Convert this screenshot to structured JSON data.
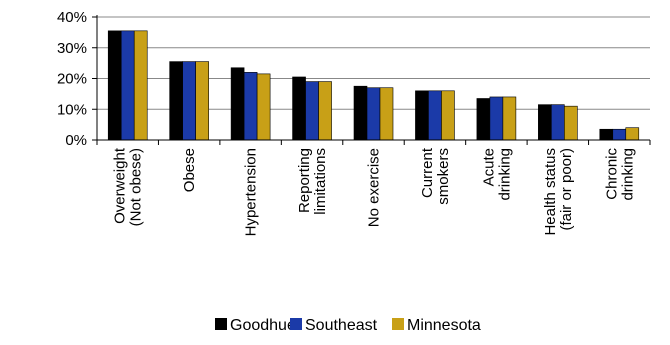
{
  "chart_data": {
    "type": "bar",
    "title": "",
    "xlabel": "",
    "ylabel": "",
    "ylim": [
      0,
      40
    ],
    "yticks": [
      0,
      10,
      20,
      30,
      40
    ],
    "ytick_labels": [
      "0%",
      "10%",
      "20%",
      "30%",
      "40%"
    ],
    "categories": [
      [
        "Overweight",
        "(Not obese)"
      ],
      [
        "Obese"
      ],
      [
        "Hypertension"
      ],
      [
        "Reporting",
        "limitations"
      ],
      [
        "No exercise"
      ],
      [
        "Current",
        "smokers"
      ],
      [
        "Acute",
        "drinking"
      ],
      [
        "Health status",
        "(fair or poor)"
      ],
      [
        "Chronic",
        "drinking"
      ]
    ],
    "series": [
      {
        "name": "Goodhue",
        "color": "#000000",
        "values": [
          35.5,
          25.5,
          23.5,
          20.5,
          17.5,
          16.0,
          13.5,
          11.5,
          3.5
        ]
      },
      {
        "name": "Southeast",
        "color": "#1b3aa8",
        "values": [
          35.5,
          25.5,
          22.0,
          19.0,
          17.0,
          16.0,
          14.0,
          11.5,
          3.5
        ]
      },
      {
        "name": "Minnesota",
        "color": "#c8a017",
        "values": [
          35.5,
          25.5,
          21.5,
          19.0,
          17.0,
          16.0,
          14.0,
          11.0,
          4.0
        ]
      }
    ],
    "grid": true,
    "legend_position": "bottom"
  }
}
